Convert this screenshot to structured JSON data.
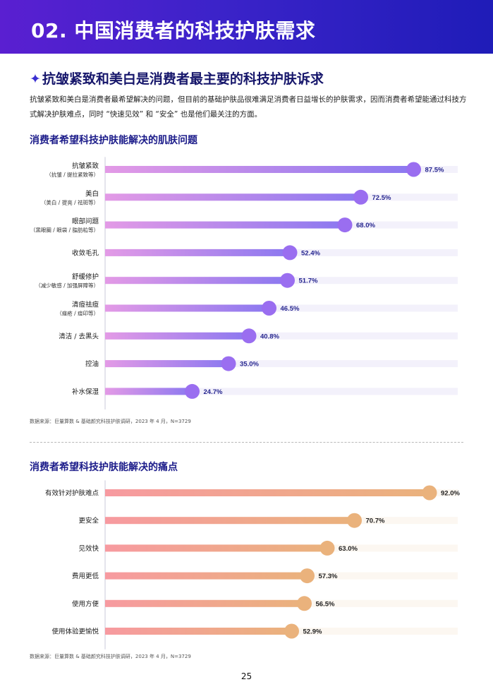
{
  "header": {
    "title": "02. 中国消费者的科技护肤需求"
  },
  "section": {
    "star": "✦",
    "heading": "抗皱紧致和美白是消费者最主要的科技护肤诉求",
    "intro": "抗皱紧致和美白是消费者最希望解决的问题，但目前的基础护肤品很难满足消费者日益增长的护肤需求，因而消费者希望能通过科技方式解决护肤难点，同时 “快速见效” 和 “安全” 也是他们最关注的方面。"
  },
  "chart_data": [
    {
      "type": "bar",
      "orientation": "horizontal",
      "title": "消费者希望科技护肤能解决的肌肤问题",
      "xlim": [
        0,
        100
      ],
      "colors": {
        "bar_start": "#e39ae6",
        "bar_end": "#8b78f0",
        "dot": "#9a6ef0",
        "track": "#f3f1fb",
        "label": "#26268f"
      },
      "categories": [
        {
          "label": "抗皱紧致",
          "sub": "（抗皱 / 提拉紧致等）"
        },
        {
          "label": "美白",
          "sub": "（美白 / 提亮 / 祛斑等）"
        },
        {
          "label": "眼部问题",
          "sub": "（黑眼圈 / 眼袋 / 脂肪粒等）"
        },
        {
          "label": "收敛毛孔",
          "sub": ""
        },
        {
          "label": "舒缓修护",
          "sub": "（减少敏感 / 加强屏障等）"
        },
        {
          "label": "清痘祛痘",
          "sub": "（痤疮 / 痘印等）"
        },
        {
          "label": "清洁 / 去黑头",
          "sub": ""
        },
        {
          "label": "控油",
          "sub": ""
        },
        {
          "label": "补水保湿",
          "sub": ""
        }
      ],
      "values": [
        87.5,
        72.5,
        68.0,
        52.4,
        51.7,
        46.5,
        40.8,
        35.0,
        24.7
      ],
      "value_labels": [
        "87.5%",
        "72.5%",
        "68.0%",
        "52.4%",
        "51.7%",
        "46.5%",
        "40.8%",
        "35.0%",
        "24.7%"
      ],
      "source": "数据来源：巨量算数 & 基础颜究科技护肤调研，2023 年 4 月，N=3729"
    },
    {
      "type": "bar",
      "orientation": "horizontal",
      "title": "消费者希望科技护肤能解决的痛点",
      "xlim": [
        0,
        100
      ],
      "colors": {
        "bar_start": "#f79aa0",
        "bar_end": "#eab27c",
        "dot": "#eab27c",
        "track": "#fcf7f1",
        "label": "#222222"
      },
      "categories": [
        {
          "label": "有效针对护肤难点",
          "sub": ""
        },
        {
          "label": "更安全",
          "sub": ""
        },
        {
          "label": "见效快",
          "sub": ""
        },
        {
          "label": "费用更低",
          "sub": ""
        },
        {
          "label": "使用方便",
          "sub": ""
        },
        {
          "label": "使用体验更愉悦",
          "sub": ""
        }
      ],
      "values": [
        92.0,
        70.7,
        63.0,
        57.3,
        56.5,
        52.9
      ],
      "value_labels": [
        "92.0%",
        "70.7%",
        "63.0%",
        "57.3%",
        "56.5%",
        "52.9%"
      ],
      "source": "数据来源：巨量算数 & 基础颜究科技护肤调研，2023 年 4 月，N=3729"
    }
  ],
  "footer": {
    "page_number": "25"
  }
}
